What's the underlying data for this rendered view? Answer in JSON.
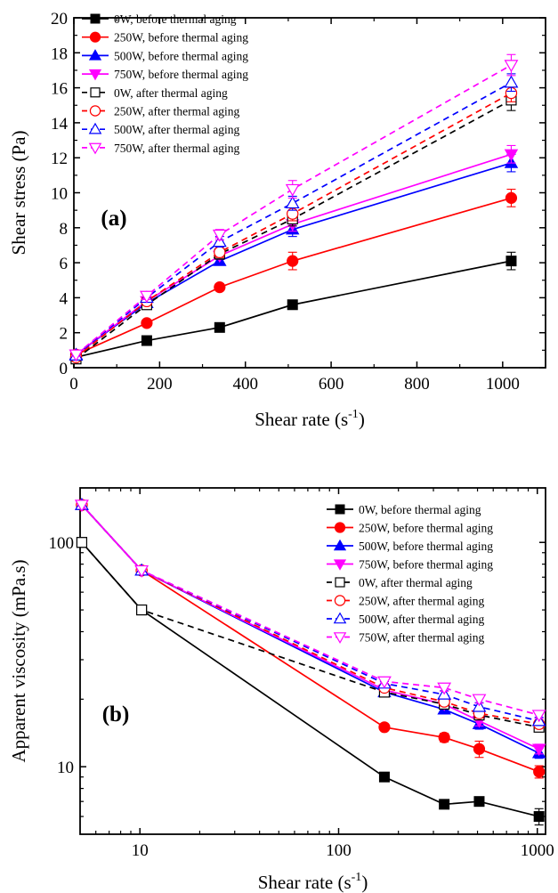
{
  "styles": {
    "0W": {
      "color": "#000000",
      "marker": "square"
    },
    "250W": {
      "color": "#ff0000",
      "marker": "circle"
    },
    "500W": {
      "color": "#0000ff",
      "marker": "triangle-up"
    },
    "750W": {
      "color": "#ff00ff",
      "marker": "triangle-down"
    }
  },
  "chart_data": [
    {
      "type": "line",
      "panel_label": "(a)",
      "xlabel": "Shear rate (s",
      "xlabel_sup": "-1",
      "xlabel_tail": ")",
      "ylabel": "Shear stress (Pa)",
      "xlim": [
        0,
        1100
      ],
      "ylim": [
        0,
        20
      ],
      "xscale": "linear",
      "yscale": "linear",
      "xticks": [
        0,
        200,
        400,
        600,
        800,
        1000
      ],
      "yticks": [
        0,
        2,
        4,
        6,
        8,
        10,
        12,
        14,
        16,
        18,
        20
      ],
      "legend_position": "top-left",
      "grid": false,
      "x": [
        5.1,
        170,
        340,
        510,
        1020
      ],
      "series": [
        {
          "name": "0W, before thermal aging",
          "key": "0W",
          "dashed": false,
          "filled": true,
          "values": [
            0.6,
            1.55,
            2.3,
            3.6,
            6.1
          ],
          "errors": [
            0.1,
            0.1,
            0.2,
            0.2,
            0.5
          ]
        },
        {
          "name": "250W, before thermal aging",
          "key": "250W",
          "dashed": false,
          "filled": true,
          "values": [
            0.75,
            2.55,
            4.6,
            6.1,
            9.7
          ],
          "errors": [
            0.1,
            0.1,
            0.2,
            0.5,
            0.5
          ]
        },
        {
          "name": "500W, before thermal aging",
          "key": "500W",
          "dashed": false,
          "filled": true,
          "values": [
            0.75,
            3.7,
            6.1,
            7.9,
            11.7
          ],
          "errors": [
            0.1,
            0.2,
            0.2,
            0.4,
            0.5
          ]
        },
        {
          "name": "750W, before thermal aging",
          "key": "750W",
          "dashed": false,
          "filled": true,
          "values": [
            0.75,
            3.8,
            6.4,
            8.2,
            12.2
          ],
          "errors": [
            0.1,
            0.2,
            0.2,
            0.4,
            0.5
          ]
        },
        {
          "name": "0W, after thermal aging",
          "key": "0W",
          "dashed": true,
          "filled": false,
          "values": [
            0.5,
            3.6,
            6.5,
            8.5,
            15.3
          ],
          "errors": [
            0.1,
            0.2,
            0.3,
            0.4,
            0.6
          ]
        },
        {
          "name": "250W, after thermal aging",
          "key": "250W",
          "dashed": true,
          "filled": false,
          "values": [
            0.6,
            3.8,
            6.6,
            8.8,
            15.7
          ],
          "errors": [
            0.1,
            0.2,
            0.3,
            0.4,
            0.5
          ]
        },
        {
          "name": "500W, after thermal aging",
          "key": "500W",
          "dashed": true,
          "filled": false,
          "values": [
            0.7,
            4.0,
            7.2,
            9.4,
            16.3
          ],
          "errors": [
            0.1,
            0.2,
            0.3,
            0.4,
            0.5
          ]
        },
        {
          "name": "750W, after thermal aging",
          "key": "750W",
          "dashed": true,
          "filled": false,
          "values": [
            0.75,
            4.1,
            7.6,
            10.2,
            17.3
          ],
          "errors": [
            0.1,
            0.2,
            0.3,
            0.5,
            0.6
          ]
        }
      ]
    },
    {
      "type": "line",
      "panel_label": "(b)",
      "xlabel": "Shear rate (s",
      "xlabel_sup": "-1",
      "xlabel_tail": ")",
      "ylabel": "Apparent viscosity (mPa.s)",
      "xlim": [
        5,
        1100
      ],
      "ylim": [
        5,
        175
      ],
      "xscale": "log",
      "yscale": "log",
      "xticks": [
        10,
        100,
        1000
      ],
      "yticks": [
        10,
        100
      ],
      "legend_position": "top-right",
      "grid": false,
      "x": [
        5.1,
        10.2,
        170,
        340,
        510,
        1020
      ],
      "series": [
        {
          "name": "0W, before thermal aging",
          "key": "0W",
          "dashed": false,
          "filled": true,
          "values": [
            100,
            50,
            9,
            6.8,
            7.0,
            6.0
          ],
          "errors": [
            0,
            0,
            0.3,
            0.3,
            0.3,
            0.5
          ]
        },
        {
          "name": "250W, before thermal aging",
          "key": "250W",
          "dashed": false,
          "filled": true,
          "values": [
            147,
            75,
            15,
            13.5,
            12,
            9.5
          ],
          "errors": [
            0,
            0,
            0.4,
            0.6,
            1.0,
            0.6
          ]
        },
        {
          "name": "500W, before thermal aging",
          "key": "500W",
          "dashed": false,
          "filled": true,
          "values": [
            147,
            75,
            21.5,
            18,
            15.5,
            11.5
          ],
          "errors": [
            0,
            0,
            0.5,
            0.8,
            0.8,
            0.6
          ]
        },
        {
          "name": "750W, before thermal aging",
          "key": "750W",
          "dashed": false,
          "filled": true,
          "values": [
            147,
            75,
            22,
            19,
            16,
            12
          ],
          "errors": [
            0,
            0,
            0.5,
            0.8,
            0.8,
            0.6
          ]
        },
        {
          "name": "0W, after thermal aging",
          "key": "0W",
          "dashed": true,
          "filled": false,
          "values": [
            100,
            50,
            21.5,
            19,
            17,
            15
          ],
          "errors": [
            0,
            0,
            0.5,
            0.8,
            0.8,
            0.6
          ]
        },
        {
          "name": "250W, after thermal aging",
          "key": "250W",
          "dashed": true,
          "filled": false,
          "values": [
            147,
            75,
            22.5,
            19.5,
            17.3,
            15.5
          ],
          "errors": [
            0,
            0,
            0.5,
            0.8,
            0.8,
            0.6
          ]
        },
        {
          "name": "500W, after thermal aging",
          "key": "500W",
          "dashed": true,
          "filled": false,
          "values": [
            147,
            75,
            23.5,
            21,
            18.5,
            16
          ],
          "errors": [
            0,
            0,
            0.5,
            0.8,
            0.8,
            0.6
          ]
        },
        {
          "name": "750W, after thermal aging",
          "key": "750W",
          "dashed": true,
          "filled": false,
          "values": [
            147,
            75,
            24,
            22.5,
            20,
            17
          ],
          "errors": [
            0,
            0,
            0.5,
            0.8,
            0.8,
            0.6
          ]
        }
      ]
    }
  ]
}
